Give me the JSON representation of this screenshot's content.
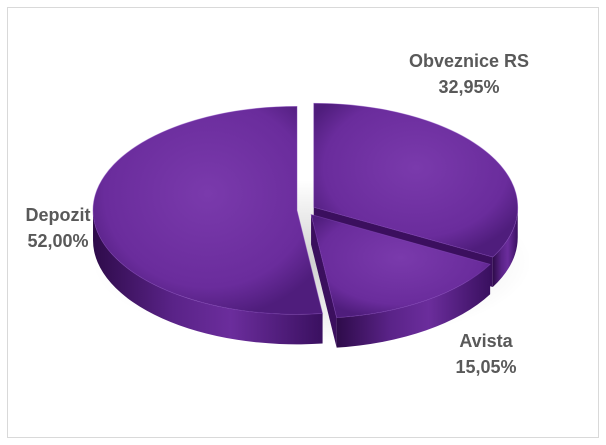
{
  "chart_data": {
    "type": "pie",
    "style": "3d-exploded",
    "slices": [
      {
        "label": "Obveznice RS",
        "value": 32.95,
        "display": "32,95%"
      },
      {
        "label": "Avista",
        "value": 15.05,
        "display": "15,05%"
      },
      {
        "label": "Depozit",
        "value": 52.0,
        "display": "52,00%"
      }
    ],
    "legend": "none",
    "colors": {
      "top": "#7030a0",
      "side_dark": "#3d1060",
      "side_light": "#5a2388",
      "label": "#595959",
      "border": "#d9d9d9"
    }
  }
}
